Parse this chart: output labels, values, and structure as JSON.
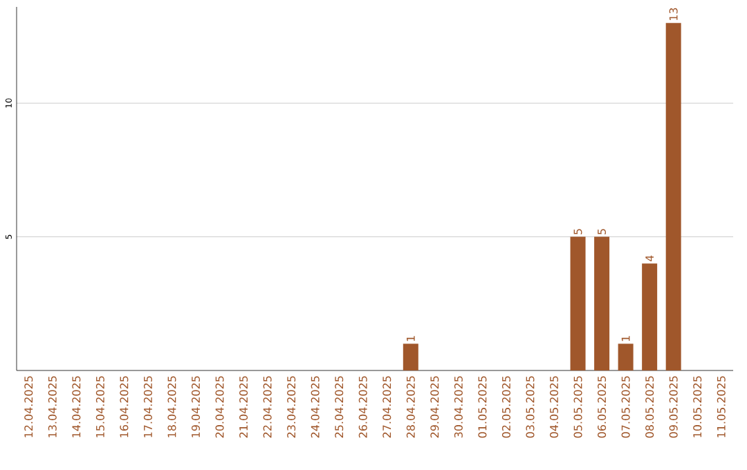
{
  "chart_data": {
    "type": "bar",
    "categories": [
      "12.04.2025",
      "13.04.2025",
      "14.04.2025",
      "15.04.2025",
      "16.04.2025",
      "17.04.2025",
      "18.04.2025",
      "19.04.2025",
      "20.04.2025",
      "21.04.2025",
      "22.04.2025",
      "23.04.2025",
      "24.04.2025",
      "25.04.2025",
      "26.04.2025",
      "27.04.2025",
      "28.04.2025",
      "29.04.2025",
      "30.04.2025",
      "01.05.2025",
      "02.05.2025",
      "03.05.2025",
      "04.05.2025",
      "05.05.2025",
      "06.05.2025",
      "07.05.2025",
      "08.05.2025",
      "09.05.2025",
      "10.05.2025",
      "11.05.2025"
    ],
    "values": [
      null,
      null,
      null,
      null,
      null,
      null,
      null,
      null,
      null,
      null,
      null,
      null,
      null,
      null,
      null,
      null,
      1,
      null,
      null,
      null,
      null,
      null,
      null,
      5,
      5,
      1,
      4,
      13,
      null,
      null
    ],
    "color": "#a0572b",
    "ylim": [
      0,
      13.6
    ],
    "yticks": [
      5,
      10
    ],
    "grid": "y",
    "data_labels": true
  }
}
